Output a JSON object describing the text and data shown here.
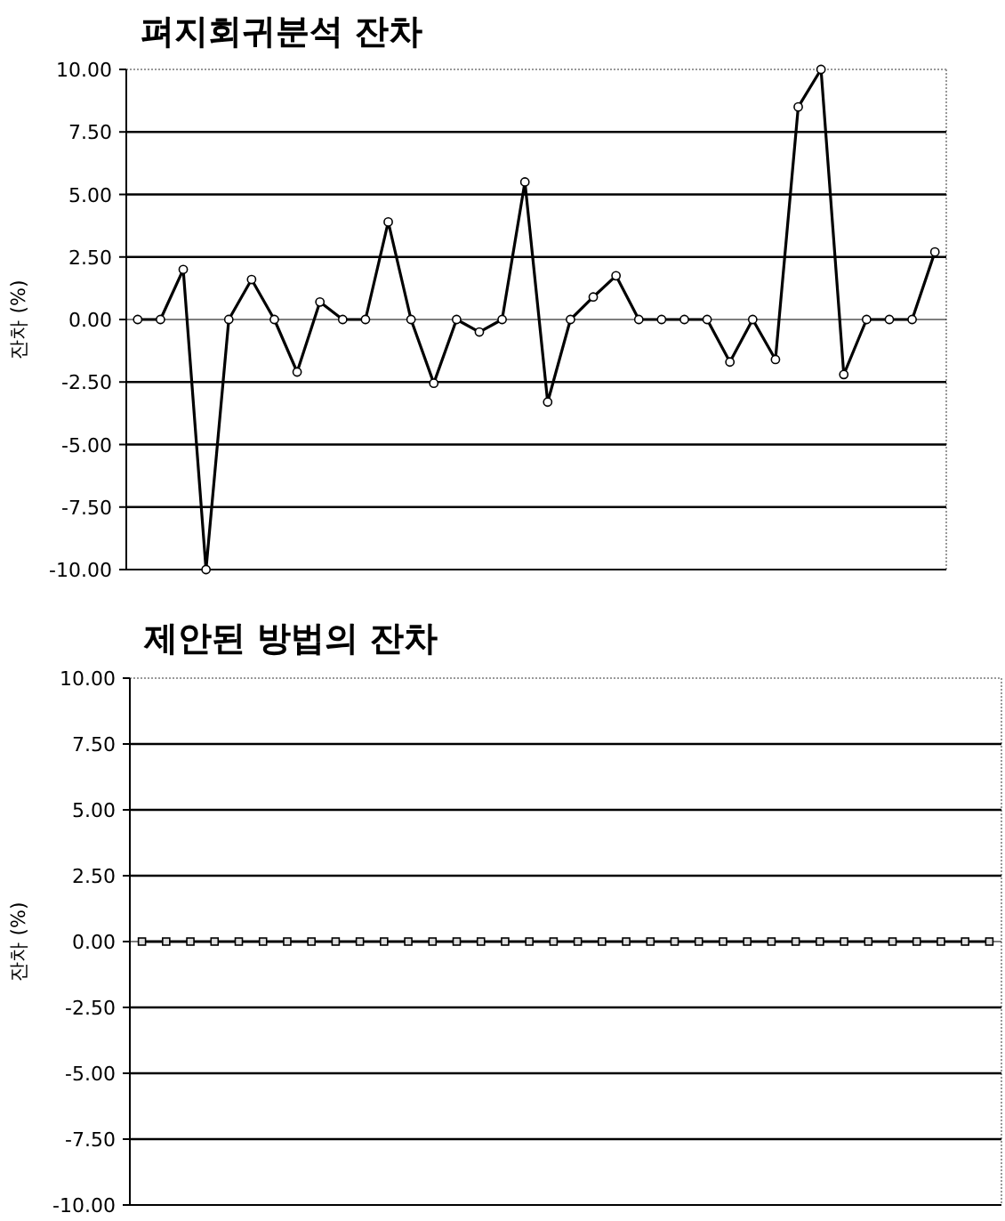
{
  "chart_data": [
    {
      "type": "line",
      "title": "펴지회귀분석 잔차",
      "ylabel": "잔차 (%)",
      "categories": [
        null,
        null,
        null,
        null,
        null,
        null,
        null,
        null,
        null,
        null,
        null,
        null,
        null,
        null,
        null,
        null,
        null,
        null,
        null,
        null,
        null,
        null,
        null,
        null,
        null,
        null,
        null,
        null,
        null,
        null,
        null,
        null,
        null,
        null,
        null,
        null
      ],
      "series": [
        {
          "color": "#000000",
          "values": [
            0,
            0,
            2.0,
            -10,
            0,
            1.6,
            0,
            -2.1,
            0.7,
            0,
            0,
            3.9,
            0,
            -2.55,
            0,
            -0.5,
            0,
            5.5,
            -3.3,
            0,
            0.9,
            1.75,
            0,
            0,
            0,
            0,
            -1.7,
            0,
            -1.6,
            8.5,
            10,
            -2.2,
            0,
            0,
            0,
            2.7
          ]
        }
      ],
      "ylim": [
        -10,
        10
      ],
      "yticks": [
        {
          "value": 10,
          "label": "10.00"
        },
        {
          "value": 7.5,
          "label": "7.50"
        },
        {
          "value": 5,
          "label": "5.00"
        },
        {
          "value": 2.5,
          "label": "2.50"
        },
        {
          "value": 0,
          "label": "0.00"
        },
        {
          "value": -2.5,
          "label": "-2.50"
        },
        {
          "value": -5,
          "label": "-5.00"
        },
        {
          "value": -7.5,
          "label": "-7.50"
        },
        {
          "value": -10,
          "label": "-10.00"
        }
      ],
      "grid": "y",
      "marker": "circle"
    },
    {
      "type": "line",
      "title": "제안된 방법의 잔차",
      "ylabel": "잔차 (%)",
      "categories": [
        null,
        null,
        null,
        null,
        null,
        null,
        null,
        null,
        null,
        null,
        null,
        null,
        null,
        null,
        null,
        null,
        null,
        null,
        null,
        null,
        null,
        null,
        null,
        null,
        null,
        null,
        null,
        null,
        null,
        null,
        null,
        null,
        null,
        null,
        null,
        null
      ],
      "series": [
        {
          "color": "#000000",
          "values": [
            0,
            0,
            0,
            0,
            0,
            0,
            0,
            0,
            0,
            0,
            0,
            0,
            0,
            0,
            0,
            0,
            0,
            0,
            0,
            0,
            0,
            0,
            0,
            0,
            0,
            0,
            0,
            0,
            0,
            0,
            0,
            0,
            0,
            0,
            0,
            0
          ]
        }
      ],
      "ylim": [
        -10,
        10
      ],
      "yticks": [
        {
          "value": 10,
          "label": "10.00"
        },
        {
          "value": 7.5,
          "label": "7.50"
        },
        {
          "value": 5,
          "label": "5.00"
        },
        {
          "value": 2.5,
          "label": "2.50"
        },
        {
          "value": 0,
          "label": "0.00"
        },
        {
          "value": -2.5,
          "label": "-2.50"
        },
        {
          "value": -5,
          "label": "-5.00"
        },
        {
          "value": -7.5,
          "label": "-7.50"
        },
        {
          "value": -10,
          "label": "-10.00"
        }
      ],
      "grid": "y",
      "marker": "square"
    }
  ]
}
